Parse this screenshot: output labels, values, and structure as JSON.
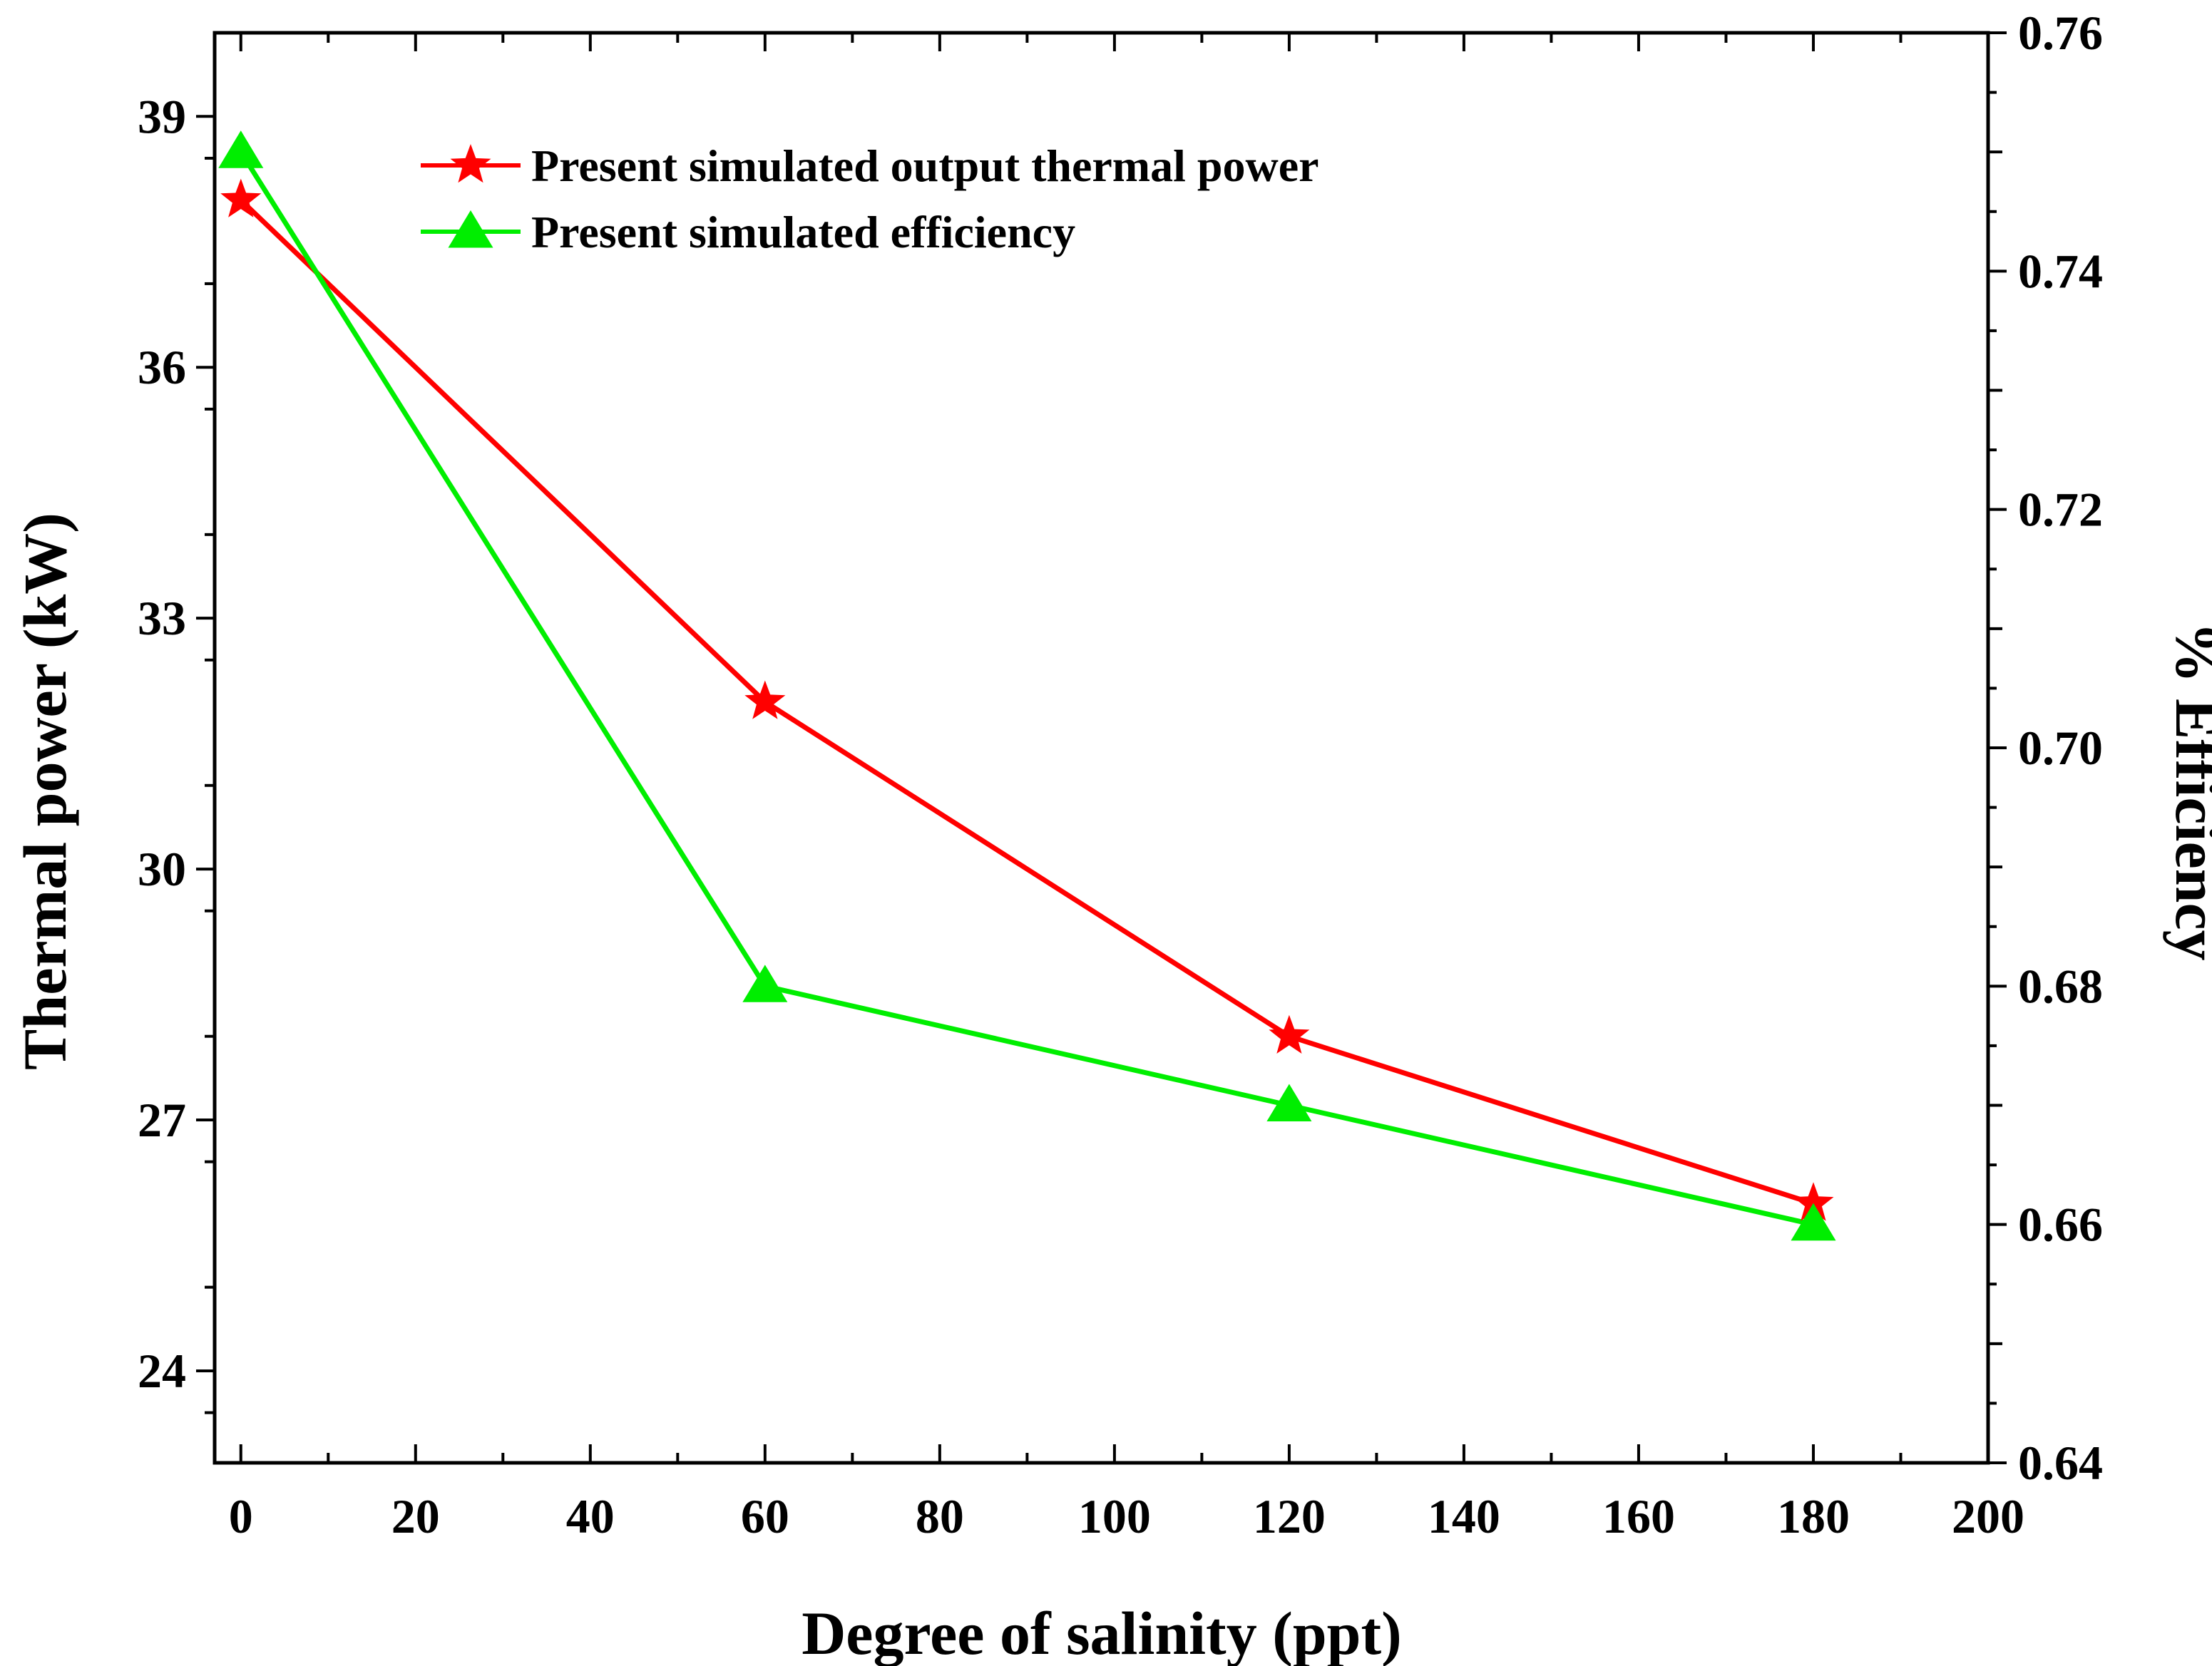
{
  "chart_data": {
    "type": "line",
    "title": "",
    "xlabel": "Degree of salinity (ppt)",
    "ylabel_left": "Thermal power (kW)",
    "ylabel_right": "% Efficiency",
    "xlim": [
      -3,
      200
    ],
    "ylim_left": [
      22.9,
      40
    ],
    "ylim_right": [
      0.64,
      0.76
    ],
    "xticks": [
      0,
      20,
      40,
      60,
      80,
      100,
      120,
      140,
      160,
      180,
      200
    ],
    "xtick_labels": [
      "0",
      "20",
      "40",
      "60",
      "80",
      "100",
      "120",
      "140",
      "160",
      "180",
      "200"
    ],
    "yticks_left": [
      24,
      27,
      30,
      33,
      36,
      39
    ],
    "ytick_labels_left": [
      "24",
      "27",
      "30",
      "33",
      "36",
      "39"
    ],
    "yticks_right": [
      0.64,
      0.66,
      0.68,
      0.7,
      0.72,
      0.74,
      0.76
    ],
    "ytick_labels_right": [
      "0.64",
      "0.66",
      "0.68",
      "0.70",
      "0.72",
      "0.74",
      "0.76"
    ],
    "grid": false,
    "legend_position": "top-left",
    "series": [
      {
        "name": "Present simulated output thermal power",
        "axis": "left",
        "color": "#ff0000",
        "marker": "star",
        "x": [
          0,
          60,
          120,
          180
        ],
        "y": [
          38.0,
          32.0,
          28.0,
          26.0
        ]
      },
      {
        "name": "Present simulated efficiency",
        "axis": "right",
        "color": "#00ee00",
        "marker": "triangle",
        "x": [
          0,
          60,
          120,
          180
        ],
        "y": [
          0.75,
          0.68,
          0.67,
          0.66
        ]
      }
    ]
  }
}
